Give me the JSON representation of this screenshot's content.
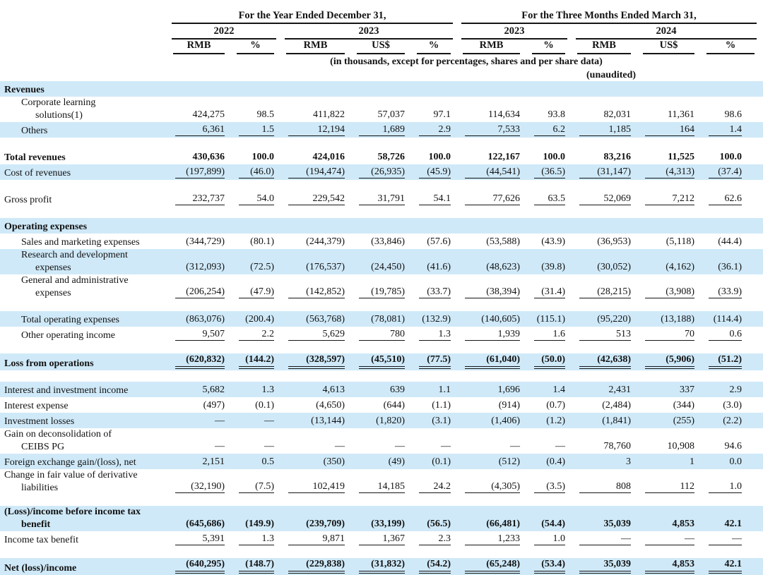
{
  "colors": {
    "row_highlight": "#cfe9f8",
    "text": "#121212",
    "rule_line": "#151515"
  },
  "header": {
    "period1": "For the Year Ended December 31,",
    "period2": "For the Three Months Ended March 31,",
    "year_2022": "2022",
    "year_2023": "2023",
    "quarter_2023": "2023",
    "quarter_2024": "2024",
    "col_labels": [
      "RMB",
      "%",
      "RMB",
      "US$",
      "%",
      "RMB",
      "%",
      "RMB",
      "US$",
      "%"
    ],
    "note_units": "(in thousands, except for percentages, shares and per share data)",
    "note_unaudited": "(unaudited)"
  },
  "rows": [
    {
      "label_lines": [
        "Revenues"
      ],
      "indent": 0,
      "bold": true,
      "highlight": true,
      "rule": "none",
      "values": [
        "",
        "",
        "",
        "",
        "",
        "",
        "",
        "",
        "",
        ""
      ]
    },
    {
      "label_lines": [
        "Corporate learning",
        "solutions(1)"
      ],
      "indent": 1,
      "bold": false,
      "highlight": false,
      "rule": "none",
      "values": [
        "424,275",
        "98.5",
        "411,822",
        "57,037",
        "97.1",
        "114,634",
        "93.8",
        "82,031",
        "11,361",
        "98.6"
      ]
    },
    {
      "label_lines": [
        "Others"
      ],
      "indent": 1,
      "bold": false,
      "highlight": true,
      "rule": "single",
      "values": [
        "6,361",
        "1.5",
        "12,194",
        "1,689",
        "2.9",
        "7,533",
        "6.2",
        "1,185",
        "164",
        "1.4"
      ]
    },
    {
      "spacer": true
    },
    {
      "label_lines": [
        "Total revenues"
      ],
      "indent": 0,
      "bold": true,
      "highlight": false,
      "rule": "none",
      "values": [
        "430,636",
        "100.0",
        "424,016",
        "58,726",
        "100.0",
        "122,167",
        "100.0",
        "83,216",
        "11,525",
        "100.0"
      ]
    },
    {
      "label_lines": [
        "Cost of revenues"
      ],
      "indent": 0,
      "bold": false,
      "highlight": true,
      "rule": "single",
      "values": [
        "(197,899)",
        "(46.0)",
        "(194,474)",
        "(26,935)",
        "(45.9)",
        "(44,541)",
        "(36.5)",
        "(31,147)",
        "(4,313)",
        "(37.4)"
      ]
    },
    {
      "spacer": true
    },
    {
      "label_lines": [
        "Gross profit"
      ],
      "indent": 0,
      "bold": false,
      "highlight": false,
      "rule": "single",
      "values": [
        "232,737",
        "54.0",
        "229,542",
        "31,791",
        "54.1",
        "77,626",
        "63.5",
        "52,069",
        "7,212",
        "62.6"
      ]
    },
    {
      "spacer": true
    },
    {
      "label_lines": [
        "Operating expenses"
      ],
      "indent": 0,
      "bold": true,
      "highlight": true,
      "rule": "none",
      "values": [
        "",
        "",
        "",
        "",
        "",
        "",
        "",
        "",
        "",
        ""
      ]
    },
    {
      "label_lines": [
        "Sales and marketing expenses"
      ],
      "indent": 1,
      "bold": false,
      "highlight": false,
      "rule": "none",
      "values": [
        "(344,729)",
        "(80.1)",
        "(244,379)",
        "(33,846)",
        "(57.6)",
        "(53,588)",
        "(43.9)",
        "(36,953)",
        "(5,118)",
        "(44.4)"
      ]
    },
    {
      "label_lines": [
        "Research and development",
        "expenses"
      ],
      "indent": 1,
      "bold": false,
      "highlight": true,
      "rule": "none",
      "values": [
        "(312,093)",
        "(72.5)",
        "(176,537)",
        "(24,450)",
        "(41.6)",
        "(48,623)",
        "(39.8)",
        "(30,052)",
        "(4,162)",
        "(36.1)"
      ]
    },
    {
      "label_lines": [
        "General and administrative",
        "expenses"
      ],
      "indent": 1,
      "bold": false,
      "highlight": false,
      "rule": "single",
      "values": [
        "(206,254)",
        "(47.9)",
        "(142,852)",
        "(19,785)",
        "(33.7)",
        "(38,394)",
        "(31.4)",
        "(28,215)",
        "(3,908)",
        "(33.9)"
      ]
    },
    {
      "spacer": true
    },
    {
      "label_lines": [
        "Total operating expenses"
      ],
      "indent": 1,
      "bold": false,
      "highlight": true,
      "rule": "none",
      "values": [
        "(863,076)",
        "(200.4)",
        "(563,768)",
        "(78,081)",
        "(132.9)",
        "(140,605)",
        "(115.1)",
        "(95,220)",
        "(13,188)",
        "(114.4)"
      ]
    },
    {
      "label_lines": [
        "Other operating income"
      ],
      "indent": 1,
      "bold": false,
      "highlight": false,
      "rule": "single",
      "values": [
        "9,507",
        "2.2",
        "5,629",
        "780",
        "1.3",
        "1,939",
        "1.6",
        "513",
        "70",
        "0.6"
      ]
    },
    {
      "spacer": true
    },
    {
      "label_lines": [
        "Loss from operations"
      ],
      "indent": 0,
      "bold": true,
      "highlight": true,
      "rule": "double",
      "values": [
        "(620,832)",
        "(144.2)",
        "(328,597)",
        "(45,510)",
        "(77.5)",
        "(61,040)",
        "(50.0)",
        "(42,638)",
        "(5,906)",
        "(51.2)"
      ]
    },
    {
      "spacer": true
    },
    {
      "label_lines": [
        "Interest and investment income"
      ],
      "indent": 0,
      "bold": false,
      "highlight": true,
      "rule": "none",
      "values": [
        "5,682",
        "1.3",
        "4,613",
        "639",
        "1.1",
        "1,696",
        "1.4",
        "2,431",
        "337",
        "2.9"
      ]
    },
    {
      "label_lines": [
        "Interest expense"
      ],
      "indent": 0,
      "bold": false,
      "highlight": false,
      "rule": "none",
      "values": [
        "(497)",
        "(0.1)",
        "(4,650)",
        "(644)",
        "(1.1)",
        "(914)",
        "(0.7)",
        "(2,484)",
        "(344)",
        "(3.0)"
      ]
    },
    {
      "label_lines": [
        "Investment losses"
      ],
      "indent": 0,
      "bold": false,
      "highlight": true,
      "rule": "none",
      "values": [
        "—",
        "—",
        "(13,144)",
        "(1,820)",
        "(3.1)",
        "(1,406)",
        "(1.2)",
        "(1,841)",
        "(255)",
        "(2.2)"
      ]
    },
    {
      "label_lines": [
        "Gain on deconsolidation of",
        "CEIBS PG"
      ],
      "indent": 0,
      "bold": false,
      "highlight": false,
      "rule": "none",
      "values": [
        "—",
        "—",
        "—",
        "—",
        "—",
        "—",
        "—",
        "78,760",
        "10,908",
        "94.6"
      ]
    },
    {
      "label_lines": [
        "Foreign exchange gain/(loss), net"
      ],
      "indent": 0,
      "bold": false,
      "highlight": true,
      "rule": "none",
      "values": [
        "2,151",
        "0.5",
        "(350)",
        "(49)",
        "(0.1)",
        "(512)",
        "(0.4)",
        "3",
        "1",
        "0.0"
      ]
    },
    {
      "label_lines": [
        "Change in fair value of derivative",
        "liabilities"
      ],
      "indent": 0,
      "bold": false,
      "highlight": false,
      "rule": "single",
      "values": [
        "(32,190)",
        "(7.5)",
        "102,419",
        "14,185",
        "24.2",
        "(4,305)",
        "(3.5)",
        "808",
        "112",
        "1.0"
      ]
    },
    {
      "spacer": true
    },
    {
      "label_lines": [
        "(Loss)/income before income tax",
        "benefit"
      ],
      "indent": 0,
      "bold": true,
      "highlight": true,
      "rule": "none",
      "values": [
        "(645,686)",
        "(149.9)",
        "(239,709)",
        "(33,199)",
        "(56.5)",
        "(66,481)",
        "(54.4)",
        "35,039",
        "4,853",
        "42.1"
      ]
    },
    {
      "label_lines": [
        "Income tax benefit"
      ],
      "indent": 0,
      "bold": false,
      "highlight": false,
      "rule": "single",
      "values": [
        "5,391",
        "1.3",
        "9,871",
        "1,367",
        "2.3",
        "1,233",
        "1.0",
        "—",
        "—",
        "—"
      ]
    },
    {
      "spacer": true
    },
    {
      "label_lines": [
        "Net (loss)/income"
      ],
      "indent": 0,
      "bold": true,
      "highlight": true,
      "rule": "double",
      "values": [
        "(640,295)",
        "(148.7)",
        "(229,838)",
        "(31,832)",
        "(54.2)",
        "(65,248)",
        "(53.4)",
        "35,039",
        "4,853",
        "42.1"
      ]
    }
  ]
}
